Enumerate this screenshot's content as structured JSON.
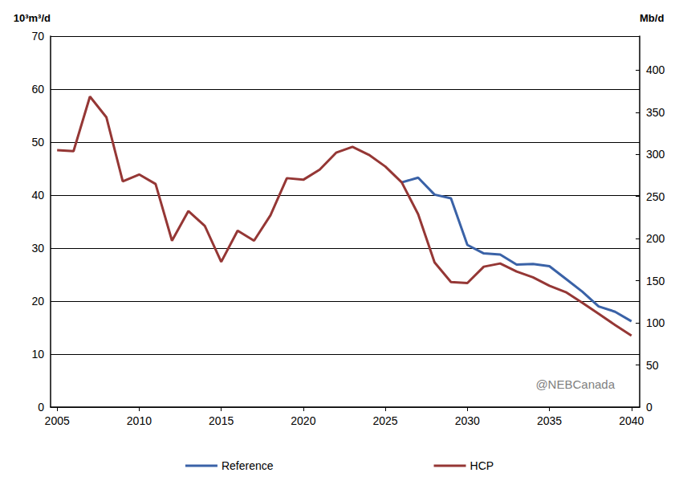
{
  "chart_data": {
    "type": "line",
    "y_label": "10³m³/d",
    "y2_label": "Mb/d",
    "annotations": [
      "@NEBCanada"
    ],
    "x": [
      2005,
      2006,
      2007,
      2008,
      2009,
      2010,
      2011,
      2012,
      2013,
      2014,
      2015,
      2016,
      2017,
      2018,
      2019,
      2020,
      2021,
      2022,
      2023,
      2024,
      2025,
      2026,
      2027,
      2028,
      2029,
      2030,
      2031,
      2032,
      2033,
      2034,
      2035,
      2036,
      2037,
      2038,
      2039,
      2040
    ],
    "series": [
      {
        "name": "Reference",
        "color": "#3a62a7",
        "values": [
          null,
          null,
          null,
          null,
          null,
          null,
          null,
          null,
          null,
          null,
          null,
          null,
          null,
          null,
          null,
          null,
          null,
          null,
          null,
          null,
          null,
          42.4,
          43.3,
          40.1,
          39.4,
          30.6,
          29.0,
          28.8,
          26.9,
          27.0,
          26.6,
          24.2,
          21.8,
          19.0,
          18.0,
          16.2
        ]
      },
      {
        "name": "HCP",
        "color": "#953735",
        "values": [
          48.5,
          48.3,
          58.6,
          54.7,
          42.6,
          43.9,
          42.1,
          31.4,
          37.0,
          34.2,
          27.4,
          33.3,
          31.4,
          36.2,
          43.2,
          42.9,
          44.8,
          48.0,
          49.1,
          47.6,
          45.4,
          42.4,
          36.4,
          27.3,
          23.6,
          23.4,
          26.5,
          27.1,
          25.6,
          24.5,
          22.9,
          21.7,
          19.7,
          17.6,
          15.5,
          13.5
        ]
      }
    ],
    "xlim": [
      2004.6,
      2040.5
    ],
    "xticks": [
      2005,
      2010,
      2015,
      2020,
      2025,
      2030,
      2035,
      2040
    ],
    "ylim": [
      0,
      70
    ],
    "yticks": [
      0,
      10,
      20,
      30,
      40,
      50,
      60,
      70
    ],
    "y2lim": [
      0,
      440.3
    ],
    "y2ticks": [
      0,
      50,
      100,
      150,
      200,
      250,
      300,
      350,
      400
    ],
    "grid": true,
    "legend": "bottom"
  }
}
